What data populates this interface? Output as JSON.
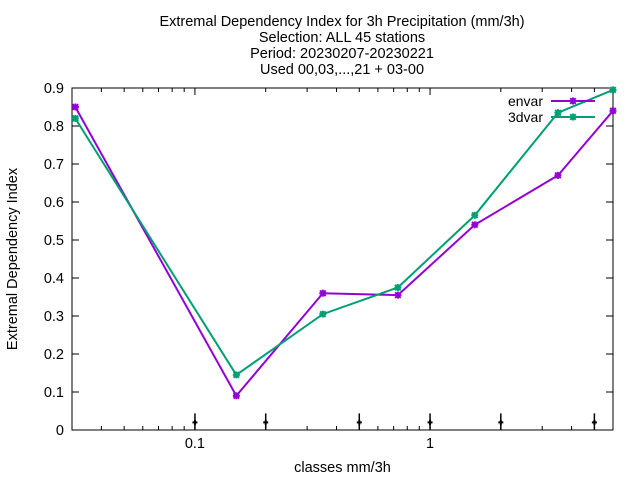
{
  "chart_data": {
    "type": "line",
    "title_lines": [
      "Extremal Dependency Index  for 3h Precipitation (mm/3h)",
      "Selection: ALL      45 stations",
      "Period: 20230207-20230221",
      "Used 00,03,...,21 + 03-00"
    ],
    "xlabel": "classes mm/3h",
    "ylabel": "Extremal Dependency Index",
    "xscale": "log",
    "xlim": [
      0.03,
      6.0
    ],
    "ylim": [
      0,
      0.9
    ],
    "xticks": [
      0.1,
      1
    ],
    "xtick_labels": [
      "0.1",
      "1"
    ],
    "yticks": [
      0,
      0.1,
      0.2,
      0.3,
      0.4,
      0.5,
      0.6,
      0.7,
      0.8,
      0.9
    ],
    "ytick_labels": [
      "0",
      "0.1",
      "0.2",
      "0.3",
      "0.4",
      "0.5",
      "0.6",
      "0.7",
      "0.8",
      "0.9"
    ],
    "legend_position": "top-right",
    "series": [
      {
        "name": "envar",
        "color": "#9400d3",
        "x": [
          0.031,
          0.15,
          0.35,
          0.73,
          1.55,
          3.5,
          6.0
        ],
        "y": [
          0.85,
          0.09,
          0.36,
          0.355,
          0.54,
          0.67,
          0.84
        ]
      },
      {
        "name": "3dvar",
        "color": "#009e73",
        "x": [
          0.031,
          0.15,
          0.35,
          0.73,
          1.55,
          3.5,
          6.0
        ],
        "y": [
          0.82,
          0.145,
          0.305,
          0.375,
          0.565,
          0.835,
          0.895
        ]
      }
    ],
    "markers": {
      "x": [
        0.1,
        0.2,
        0.5,
        1,
        2,
        5
      ],
      "y": 0.02,
      "color": "#000000"
    }
  }
}
